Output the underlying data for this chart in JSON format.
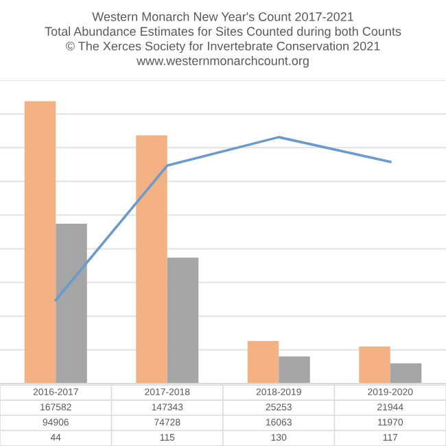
{
  "chart_data": {
    "type": "bar",
    "title": "Western Monarch New Year's Count 2017-2021\nTotal Abundance Estimates for Sites Counted during both Counts\n© The Xerces Society for Invertebrate Conservation 2021\nwww.westernmonarchcount.org",
    "categories": [
      "2016-2017",
      "2017-2018",
      "2018-2019",
      "2019-2020"
    ],
    "series": [
      {
        "color": "#f4b183",
        "values": [
          167582,
          147343,
          25253,
          21944
        ]
      },
      {
        "color": "#a5a5a5",
        "values": [
          94906,
          74728,
          16063,
          11970
        ]
      },
      {
        "type": "line",
        "axis": "y2",
        "color": "#6a9bcb",
        "values": [
          44,
          115,
          130,
          117
        ]
      }
    ],
    "ylim": [
      0,
      180000
    ],
    "yticks": [
      {
        "value": 0,
        "label": null
      },
      {
        "value": 20000,
        "label": null
      },
      {
        "value": 40000,
        "label": null
      },
      {
        "value": 60000,
        "label": null
      },
      {
        "value": 80000,
        "label": null
      },
      {
        "value": 100000,
        "label": null
      },
      {
        "value": 120000,
        "label": null
      },
      {
        "value": 140000,
        "label": null
      },
      {
        "value": 160000,
        "label": null
      },
      {
        "value": 180000,
        "label": null
      }
    ],
    "y2lim": [
      0,
      160
    ],
    "grid": "y",
    "tick_labels": false,
    "data_labels": true,
    "marker": "none",
    "line_style": "solid"
  }
}
